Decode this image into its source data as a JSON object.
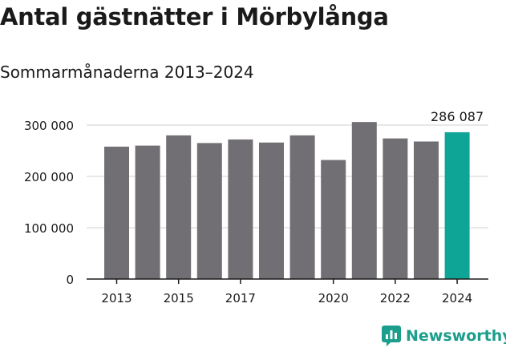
{
  "header": {
    "title": "Antal gästnätter i Mörbylånga",
    "subtitle": "Sommarmånaderna 2013–2024"
  },
  "chart_data": {
    "type": "bar",
    "categories": [
      "2013",
      "2014",
      "2015",
      "2016",
      "2017",
      "2018",
      "2019",
      "2020",
      "2021",
      "2022",
      "2023",
      "2024"
    ],
    "values": [
      258000,
      260000,
      280000,
      265000,
      272000,
      266000,
      280000,
      232000,
      306000,
      274000,
      268000,
      286087
    ],
    "tick_labels_x": [
      "2013",
      "2015",
      "2017",
      "2020",
      "2022",
      "2024"
    ],
    "tick_labels_y": [
      "0",
      "100 000",
      "200 000",
      "300 000"
    ],
    "ylim": [
      0,
      320000
    ],
    "annotations": [
      {
        "category": "2024",
        "text": "286 087"
      }
    ],
    "colors": {
      "bar": "#716f73",
      "highlight": "#0fa596",
      "grid": "#d9d9d9"
    },
    "grid": true
  },
  "brand": {
    "name": "Newsworthy",
    "icon": "newsworthy-logo-icon",
    "color": "#1b9e8c"
  }
}
